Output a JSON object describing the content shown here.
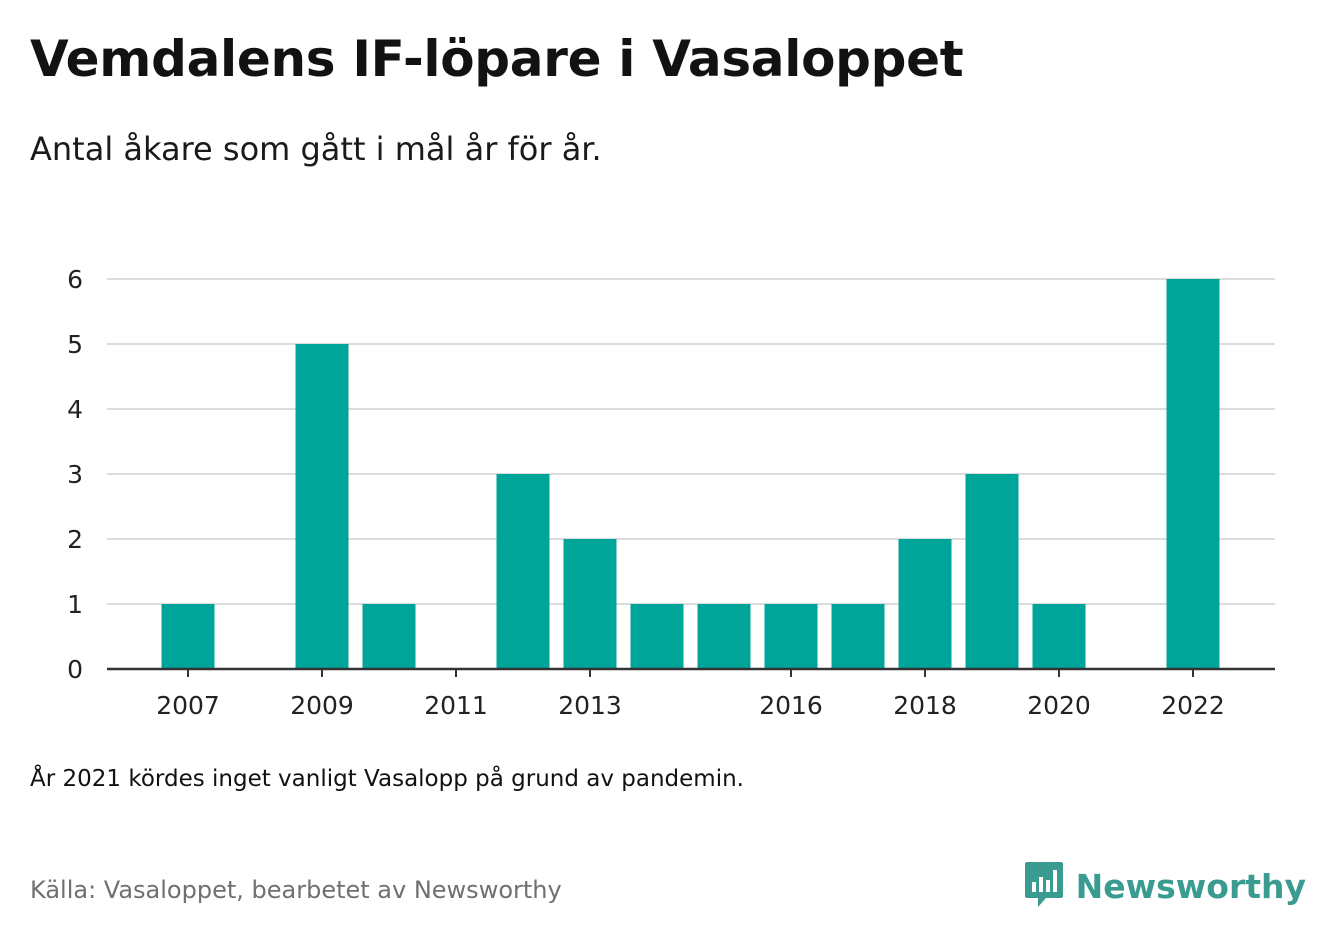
{
  "header": {
    "title": "Vemdalens IF-löpare i Vasaloppet",
    "subtitle": "Antal åkare som gått i mål år för år."
  },
  "footer": {
    "note": "År 2021 kördes inget vanligt Vasalopp på grund av pandemin.",
    "source": "Källa: Vasaloppet, bearbetet av Newsworthy",
    "brand": "Newsworthy",
    "brand_icon": "bar-chart-speech-bubble-icon"
  },
  "colors": {
    "bar": "#00a59a",
    "grid": "#dcdcdc",
    "axis": "#333333",
    "brand": "#3a9b90"
  },
  "chart_data": {
    "type": "bar",
    "categories": [
      "2007",
      "2008",
      "2009",
      "2010",
      "2011",
      "2012",
      "2013",
      "2014",
      "2015",
      "2016",
      "2017",
      "2018",
      "2019",
      "2020",
      "2021",
      "2022"
    ],
    "values": [
      1,
      0,
      5,
      1,
      0,
      3,
      2,
      1,
      1,
      1,
      1,
      2,
      3,
      1,
      0,
      6
    ],
    "x_tick_labels": [
      "2007",
      "2009",
      "2011",
      "2013",
      "2016",
      "2018",
      "2020",
      "2022"
    ],
    "y_ticks": [
      0,
      1,
      2,
      3,
      4,
      5,
      6
    ],
    "ylim": [
      0,
      6
    ],
    "grid": true,
    "xlabel": "",
    "ylabel": ""
  }
}
